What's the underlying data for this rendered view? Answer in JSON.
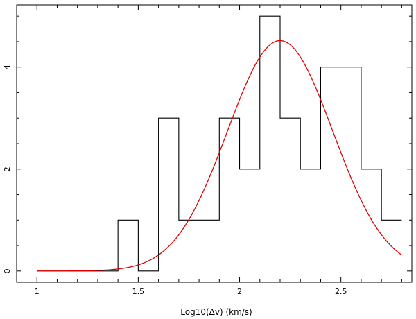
{
  "chart_data": {
    "type": "histogram_with_fit",
    "xlabel": "Log10(Δv)  (km/s)",
    "ylabel": "",
    "xlim": [
      0.9,
      2.85
    ],
    "ylim": [
      -0.22,
      5.22
    ],
    "x_ticks": [
      1,
      1.5,
      2,
      2.5
    ],
    "x_tick_labels": [
      "1",
      "1.5",
      "2",
      "2.5"
    ],
    "y_ticks": [
      0,
      2,
      4
    ],
    "y_tick_labels": [
      "0",
      "2",
      "4"
    ],
    "grid": false,
    "series": [
      {
        "kind": "histogram-step",
        "color": "#000000",
        "bin_edges": [
          1.0,
          1.1,
          1.2,
          1.3,
          1.4,
          1.5,
          1.6,
          1.7,
          1.8,
          1.9,
          2.0,
          2.1,
          2.2,
          2.3,
          2.4,
          2.5,
          2.6,
          2.7,
          2.8
        ],
        "counts": [
          0,
          0,
          0,
          0,
          1,
          0,
          3,
          1,
          1,
          3,
          2,
          5,
          3,
          2,
          4,
          4,
          2,
          1
        ]
      },
      {
        "kind": "gaussian-fit",
        "color": "#e00000",
        "amplitude": 4.52,
        "mean": 2.2,
        "sigma": 0.26,
        "x_range": [
          1.0,
          2.8
        ]
      }
    ]
  }
}
